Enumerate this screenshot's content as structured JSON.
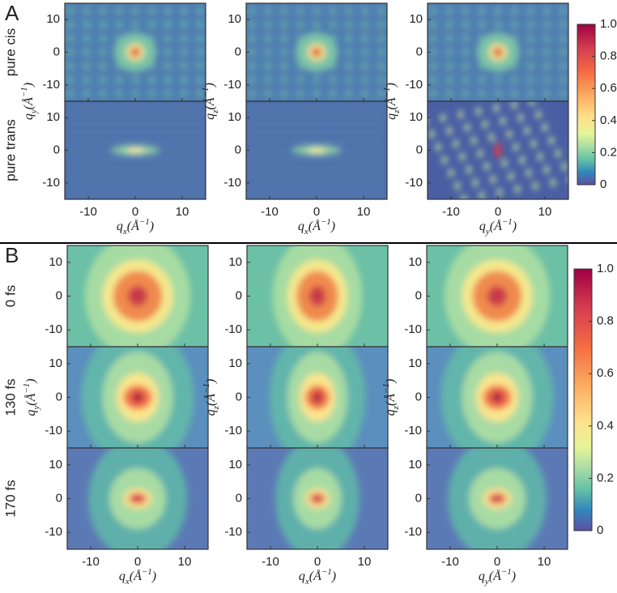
{
  "panels": [
    {
      "letter": "A",
      "row_labels": [
        "pure cis",
        "pure trans"
      ],
      "y_labels": [
        [
          "q",
          "y",
          "(Å",
          "−1",
          ")"
        ],
        [
          "q",
          "z",
          "(Å",
          "−1",
          ")"
        ],
        [
          "q",
          "z",
          "(Å",
          "−1",
          ")"
        ]
      ],
      "x_labels": [
        [
          "q",
          "x",
          "(Å",
          "−1",
          ")"
        ],
        [
          "q",
          "x",
          "(Å",
          "−1",
          ")"
        ],
        [
          "q",
          "y",
          "(Å",
          "−1",
          ")"
        ]
      ]
    },
    {
      "letter": "B",
      "row_labels": [
        "0 fs",
        "130 fs",
        "170 fs"
      ],
      "y_labels": [
        [
          "q",
          "y",
          "(Å",
          "−1",
          ")"
        ],
        [
          "q",
          "z",
          "(Å",
          "−1",
          ")"
        ],
        [
          "q",
          "z",
          "(Å",
          "−1",
          ")"
        ]
      ],
      "x_labels": [
        [
          "q",
          "x",
          "(Å",
          "−1",
          ")"
        ],
        [
          "q",
          "x",
          "(Å",
          "−1",
          ")"
        ],
        [
          "q",
          "y",
          "(Å",
          "−1",
          ")"
        ]
      ]
    }
  ],
  "axis": {
    "lim": [
      -15,
      15
    ],
    "ticks": [
      -10,
      0,
      10
    ]
  },
  "colorbar": {
    "lim": [
      0,
      1
    ],
    "ticks": [
      0,
      0.2,
      0.4,
      0.6,
      0.8,
      {
        "value": 1,
        "label": "1.0"
      }
    ]
  }
}
